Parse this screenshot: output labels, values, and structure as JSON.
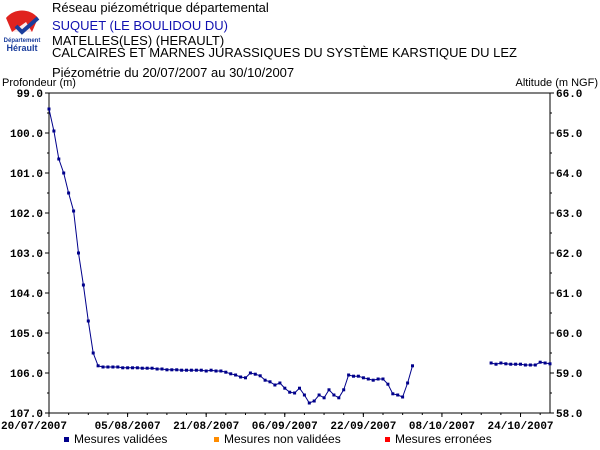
{
  "header": {
    "network": "Réseau piézométrique départemental",
    "station": "SUQUET (LE BOULIDOU DU)",
    "commune": "MATELLES(LES) (HERAULT)",
    "aquifer": "CALCAIRES ET MARNES JURASSIQUES DU SYSTÈME KARSTIQUE DU LEZ",
    "period": "Piézométrie du 20/07/2007 au 30/10/2007"
  },
  "logo": {
    "text_top": "Département",
    "text_bottom": "Hérault"
  },
  "colors": {
    "validated": "#00008b",
    "not_validated": "#ff8c00",
    "erroneous": "#ff0000",
    "station_text": "#1010b0"
  },
  "chart_data": {
    "type": "line",
    "ylabel_left": "Profondeur (m)",
    "ylabel_right": "Altitude (m NGF)",
    "left_axis": {
      "min": 99.0,
      "max": 107.0,
      "inverted": true,
      "ticks": [
        "99.0",
        "100.0",
        "101.0",
        "102.0",
        "103.0",
        "104.0",
        "105.0",
        "106.0",
        "107.0"
      ]
    },
    "right_axis": {
      "min": 58.0,
      "max": 66.0,
      "ticks": [
        "66.0",
        "65.0",
        "64.0",
        "63.0",
        "62.0",
        "61.0",
        "60.0",
        "59.0",
        "58.0"
      ]
    },
    "x_axis": {
      "start": "20/07/2007",
      "end": "30/10/2007",
      "ticks": [
        "20/07/2007",
        "05/08/2007",
        "21/08/2007",
        "06/09/2007",
        "22/09/2007",
        "08/10/2007",
        "24/10/2007"
      ]
    },
    "grid": false,
    "legend": [
      "Mesures validées",
      "Mesures non validées",
      "Mesures erronées"
    ],
    "series": [
      {
        "name": "Mesures validées",
        "segments": [
          [
            [
              "20/07/2007",
              99.4
            ],
            [
              "21/07/2007",
              99.95
            ],
            [
              "22/07/2007",
              100.65
            ],
            [
              "23/07/2007",
              101.0
            ],
            [
              "24/07/2007",
              101.5
            ],
            [
              "25/07/2007",
              101.95
            ],
            [
              "26/07/2007",
              103.0
            ],
            [
              "27/07/2007",
              103.8
            ],
            [
              "28/07/2007",
              104.7
            ],
            [
              "29/07/2007",
              105.5
            ],
            [
              "30/07/2007",
              105.82
            ],
            [
              "31/07/2007",
              105.85
            ],
            [
              "01/08/2007",
              105.85
            ],
            [
              "02/08/2007",
              105.85
            ],
            [
              "03/08/2007",
              105.85
            ],
            [
              "04/08/2007",
              105.87
            ],
            [
              "05/08/2007",
              105.87
            ],
            [
              "06/08/2007",
              105.87
            ],
            [
              "07/08/2007",
              105.87
            ],
            [
              "08/08/2007",
              105.88
            ],
            [
              "09/08/2007",
              105.88
            ],
            [
              "10/08/2007",
              105.88
            ],
            [
              "11/08/2007",
              105.9
            ],
            [
              "12/08/2007",
              105.9
            ],
            [
              "13/08/2007",
              105.92
            ],
            [
              "14/08/2007",
              105.92
            ],
            [
              "15/08/2007",
              105.92
            ],
            [
              "16/08/2007",
              105.93
            ],
            [
              "17/08/2007",
              105.93
            ],
            [
              "18/08/2007",
              105.93
            ],
            [
              "19/08/2007",
              105.93
            ],
            [
              "20/08/2007",
              105.93
            ],
            [
              "21/08/2007",
              105.95
            ],
            [
              "22/08/2007",
              105.93
            ],
            [
              "23/08/2007",
              105.95
            ],
            [
              "24/08/2007",
              105.95
            ],
            [
              "25/08/2007",
              105.98
            ],
            [
              "26/08/2007",
              106.02
            ],
            [
              "27/08/2007",
              106.05
            ],
            [
              "28/08/2007",
              106.1
            ],
            [
              "29/08/2007",
              106.12
            ],
            [
              "30/08/2007",
              106.0
            ],
            [
              "31/08/2007",
              106.03
            ],
            [
              "01/09/2007",
              106.07
            ],
            [
              "02/09/2007",
              106.18
            ],
            [
              "03/09/2007",
              106.22
            ],
            [
              "04/09/2007",
              106.3
            ],
            [
              "05/09/2007",
              106.25
            ],
            [
              "06/09/2007",
              106.38
            ],
            [
              "07/09/2007",
              106.48
            ],
            [
              "08/09/2007",
              106.5
            ],
            [
              "09/09/2007",
              106.38
            ],
            [
              "10/09/2007",
              106.55
            ],
            [
              "11/09/2007",
              106.75
            ],
            [
              "12/09/2007",
              106.7
            ],
            [
              "13/09/2007",
              106.55
            ],
            [
              "14/09/2007",
              106.62
            ],
            [
              "15/09/2007",
              106.42
            ],
            [
              "16/09/2007",
              106.55
            ],
            [
              "17/09/2007",
              106.62
            ],
            [
              "18/09/2007",
              106.42
            ],
            [
              "19/09/2007",
              106.05
            ],
            [
              "20/09/2007",
              106.08
            ],
            [
              "21/09/2007",
              106.08
            ],
            [
              "22/09/2007",
              106.12
            ],
            [
              "23/09/2007",
              106.15
            ],
            [
              "24/09/2007",
              106.18
            ],
            [
              "25/09/2007",
              106.15
            ],
            [
              "26/09/2007",
              106.15
            ],
            [
              "27/09/2007",
              106.28
            ],
            [
              "28/09/2007",
              106.52
            ],
            [
              "29/09/2007",
              106.55
            ],
            [
              "30/09/2007",
              106.6
            ],
            [
              "01/10/2007",
              106.25
            ],
            [
              "02/10/2007",
              105.82
            ]
          ],
          [
            [
              "18/10/2007",
              105.75
            ],
            [
              "19/10/2007",
              105.78
            ],
            [
              "20/10/2007",
              105.75
            ],
            [
              "21/10/2007",
              105.77
            ],
            [
              "22/10/2007",
              105.78
            ],
            [
              "23/10/2007",
              105.78
            ],
            [
              "24/10/2007",
              105.78
            ],
            [
              "25/10/2007",
              105.8
            ],
            [
              "26/10/2007",
              105.8
            ],
            [
              "27/10/2007",
              105.8
            ],
            [
              "28/10/2007",
              105.73
            ],
            [
              "29/10/2007",
              105.75
            ],
            [
              "30/10/2007",
              105.77
            ]
          ]
        ]
      }
    ]
  }
}
